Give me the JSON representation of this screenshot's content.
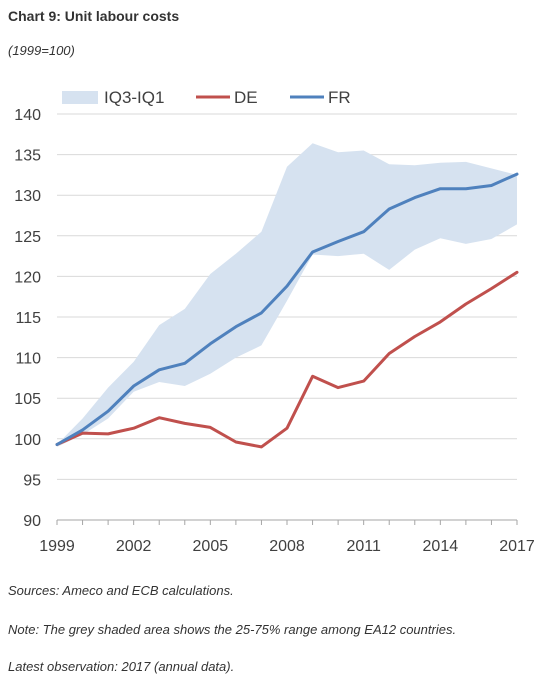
{
  "header": {
    "title": "Chart 9: Unit labour costs",
    "subtitle": "(1999=100)"
  },
  "footer": {
    "sources": "Sources: Ameco and ECB calculations.",
    "note": "Note: The grey shaded area shows the 25-75% range among EA12 countries.",
    "latest": "Latest observation: 2017 (annual data)."
  },
  "chart_data": {
    "type": "line",
    "title": "Chart 9: Unit labour costs",
    "subtitle": "(1999=100)",
    "x": [
      1999,
      2000,
      2001,
      2002,
      2003,
      2004,
      2005,
      2006,
      2007,
      2008,
      2009,
      2010,
      2011,
      2012,
      2013,
      2014,
      2015,
      2016,
      2017
    ],
    "xticks": [
      "1999",
      "2002",
      "2005",
      "2008",
      "2011",
      "2014",
      "2017"
    ],
    "ylim": [
      90,
      140
    ],
    "yticks": [
      "90",
      "95",
      "100",
      "105",
      "110",
      "115",
      "120",
      "125",
      "130",
      "135",
      "140"
    ],
    "grid": true,
    "legend_position": "top",
    "band": {
      "name": "IQ3-IQ1",
      "color": "#d6e2f0",
      "upper": [
        99.3,
        102.5,
        106.3,
        109.5,
        114.0,
        116.0,
        120.3,
        122.8,
        125.5,
        133.5,
        136.4,
        135.3,
        135.5,
        133.8,
        133.7,
        134.0,
        134.1,
        133.3,
        132.5
      ],
      "lower": [
        99.0,
        100.5,
        102.5,
        105.8,
        107.0,
        106.5,
        108.0,
        110.0,
        111.5,
        117.0,
        122.7,
        122.5,
        122.8,
        120.8,
        123.3,
        124.7,
        124.0,
        124.6,
        126.4
      ]
    },
    "series": [
      {
        "name": "DE",
        "color": "#c0504d",
        "values": [
          99.3,
          100.7,
          100.6,
          101.3,
          102.6,
          101.9,
          101.4,
          99.6,
          99.0,
          101.3,
          107.7,
          106.3,
          107.1,
          110.5,
          112.6,
          114.4,
          116.6,
          118.5,
          120.5
        ]
      },
      {
        "name": "FR",
        "color": "#4f81bd",
        "values": [
          99.3,
          101.1,
          103.4,
          106.5,
          108.5,
          109.3,
          111.7,
          113.8,
          115.5,
          118.8,
          123.0,
          124.3,
          125.5,
          128.3,
          129.7,
          130.8,
          130.8,
          131.2,
          132.6
        ]
      }
    ]
  }
}
